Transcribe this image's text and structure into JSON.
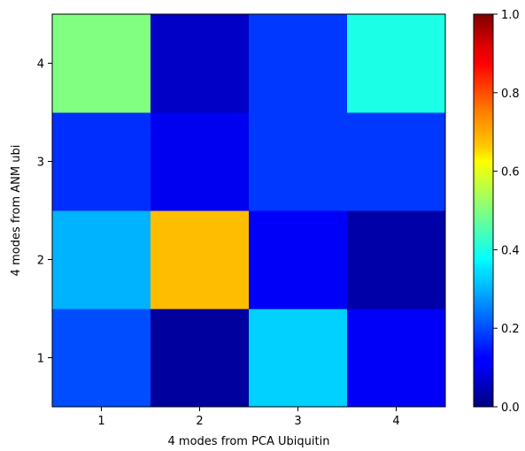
{
  "chart_data": {
    "type": "heatmap",
    "title": "",
    "xlabel": "4 modes from PCA Ubiquitin",
    "ylabel": "4 modes from ANM ubi",
    "x_categories": [
      "1",
      "2",
      "3",
      "4"
    ],
    "y_categories": [
      "1",
      "2",
      "3",
      "4"
    ],
    "matrix": [
      [
        0.2,
        0.03,
        0.33,
        0.12
      ],
      [
        0.3,
        0.69,
        0.12,
        0.04
      ],
      [
        0.17,
        0.11,
        0.18,
        0.18
      ],
      [
        0.5,
        0.07,
        0.18,
        0.4
      ]
    ],
    "colormap": "jet",
    "clim": [
      0.0,
      1.0
    ],
    "colorbar": {
      "ticks": [
        0.0,
        0.2,
        0.4,
        0.6,
        0.8,
        1.0
      ],
      "tick_labels": [
        "0.0",
        "0.2",
        "0.4",
        "0.6",
        "0.8",
        "1.0"
      ]
    },
    "grid": false
  }
}
